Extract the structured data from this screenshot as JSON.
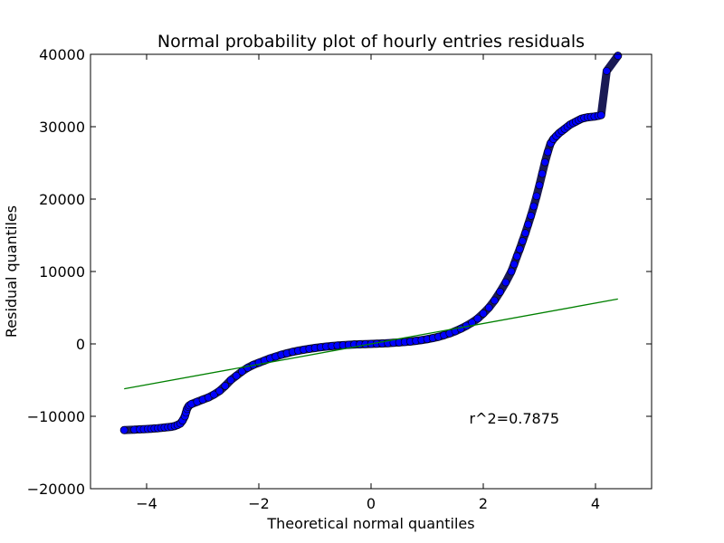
{
  "chart_data": {
    "type": "scatter",
    "title": "Normal probability plot of hourly entries residuals",
    "xlabel": "Theoretical normal quantiles",
    "ylabel": "Residual quantiles",
    "xlim": [
      -5,
      5
    ],
    "ylim": [
      -20000,
      40000
    ],
    "xticks": [
      -4,
      -2,
      0,
      2,
      4
    ],
    "xtick_labels": [
      "−4",
      "−2",
      "0",
      "2",
      "4"
    ],
    "yticks": [
      -20000,
      -10000,
      0,
      10000,
      20000,
      30000,
      40000
    ],
    "ytick_labels": [
      "−20000",
      "−10000",
      "0",
      "10000",
      "20000",
      "30000",
      "40000"
    ],
    "grid": false,
    "marker_color": "#0000ff",
    "line_color": "#008000",
    "annotation": {
      "text": "r^2=0.7875",
      "x": 1.75,
      "y": -11000
    },
    "fit_line": {
      "x": [
        -4.4,
        4.4
      ],
      "y": [
        -6200,
        6200
      ]
    },
    "series": [
      {
        "values_x": [
          -4.4,
          -4.22,
          -4.12,
          -4.05,
          -3.98,
          -3.92,
          -3.86,
          -3.8,
          -3.74,
          -3.68,
          -3.62,
          -3.56,
          -3.5,
          -3.45,
          -3.4,
          -3.36,
          -3.32,
          -3.3,
          -3.28,
          -3.26,
          -3.24,
          -3.2,
          -3.1,
          -3.0,
          -2.9,
          -2.8,
          -2.7,
          -2.6,
          -2.5,
          -2.4,
          -2.3,
          -2.2,
          -2.1,
          -2.0,
          -1.9,
          -1.8,
          -1.7,
          -1.6,
          -1.5,
          -1.4,
          -1.3,
          -1.2,
          -1.1,
          -1.0,
          -0.9,
          -0.8,
          -0.7,
          -0.6,
          -0.5,
          -0.4,
          -0.3,
          -0.2,
          -0.1,
          0.0,
          0.1,
          0.2,
          0.3,
          0.4,
          0.5,
          0.6,
          0.7,
          0.8,
          0.9,
          1.0,
          1.1,
          1.2,
          1.3,
          1.4,
          1.5,
          1.6,
          1.7,
          1.8,
          1.9,
          2.0,
          2.1,
          2.2,
          2.3,
          2.4,
          2.5,
          2.55,
          2.6,
          2.65,
          2.7,
          2.75,
          2.8,
          2.85,
          2.9,
          2.95,
          3.0,
          3.05,
          3.1,
          3.15,
          3.2,
          3.25,
          3.3,
          3.35,
          3.4,
          3.45,
          3.5,
          3.55,
          3.6,
          3.65,
          3.7,
          3.75,
          3.8,
          3.86,
          3.92,
          3.98,
          4.05,
          4.1,
          4.2,
          4.4
        ],
        "values_y": [
          -11900,
          -11850,
          -11800,
          -11780,
          -11750,
          -11720,
          -11680,
          -11650,
          -11600,
          -11550,
          -11500,
          -11450,
          -11350,
          -11200,
          -11000,
          -10600,
          -10000,
          -9500,
          -9000,
          -8700,
          -8500,
          -8300,
          -8000,
          -7700,
          -7400,
          -7000,
          -6500,
          -5800,
          -5000,
          -4400,
          -3800,
          -3300,
          -2900,
          -2600,
          -2300,
          -2000,
          -1750,
          -1500,
          -1300,
          -1100,
          -950,
          -800,
          -680,
          -560,
          -460,
          -380,
          -300,
          -230,
          -170,
          -120,
          -80,
          -50,
          -20,
          0,
          30,
          60,
          100,
          150,
          200,
          260,
          330,
          420,
          520,
          650,
          800,
          980,
          1200,
          1450,
          1750,
          2100,
          2500,
          2950,
          3500,
          4200,
          5000,
          6000,
          7200,
          8500,
          10000,
          11000,
          12100,
          13100,
          14200,
          15300,
          16500,
          17700,
          19000,
          20400,
          21900,
          23500,
          25100,
          26500,
          27700,
          28300,
          28700,
          29100,
          29400,
          29700,
          30000,
          30300,
          30500,
          30700,
          30900,
          31100,
          31200,
          31300,
          31350,
          31400,
          31500,
          31600,
          37700,
          39800
        ]
      }
    ]
  }
}
